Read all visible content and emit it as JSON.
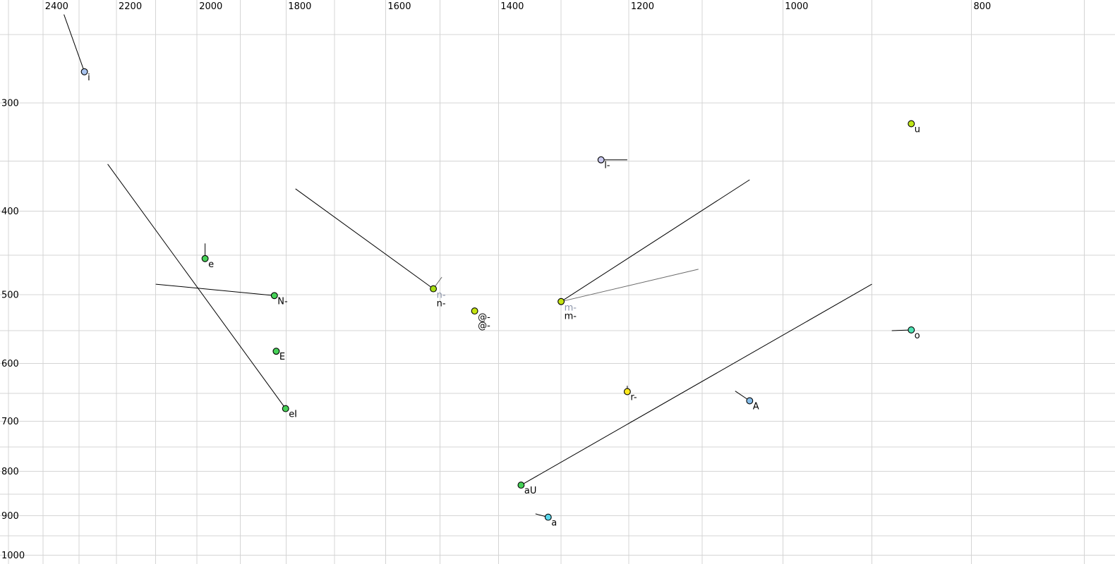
{
  "chart_data": {
    "type": "scatter",
    "title": "",
    "axes": {
      "x": {
        "scale": "log",
        "reversed": true,
        "min": 675,
        "max": 2525,
        "grid_from": 2500,
        "grid_to": 700,
        "grid_step": 100,
        "tick_labels": [
          2400,
          2200,
          2000,
          1800,
          1600,
          1400,
          1200,
          1000,
          800
        ],
        "label_side": "top"
      },
      "y": {
        "scale": "log",
        "min": 228,
        "max": 1024,
        "grid_from": 250,
        "grid_to": 1000,
        "grid_step": 50,
        "tick_labels": [
          300,
          400,
          500,
          600,
          700,
          800,
          900,
          1000
        ],
        "label_side": "left"
      }
    },
    "colors": {
      "background": "#ffffff",
      "grid": "#d4d4d4",
      "black_series": "#000000",
      "gray_series_label": "#8a93a8",
      "gray_series_line": "#6a6a6a"
    },
    "points": [
      {
        "label": "i",
        "f2": 2285,
        "f1": 276,
        "fill": "#a9c4ef",
        "labels": [
          {
            "text": "i",
            "color": "#000000"
          }
        ],
        "segments": [
          {
            "f2": 2341,
            "f1": 237,
            "color": "#000000"
          }
        ]
      },
      {
        "label": "e",
        "f2": 1981,
        "f1": 454,
        "fill": "#46d157",
        "labels": [
          {
            "text": "e",
            "color": "#000000"
          }
        ],
        "segments": [
          {
            "f2": 1981,
            "f1": 436,
            "color": "#000000"
          }
        ]
      },
      {
        "label": "N-",
        "f2": 1825,
        "f1": 501,
        "fill": "#46d157",
        "labels": [
          {
            "text": "N-",
            "color": "#000000"
          }
        ],
        "segments": [
          {
            "f2": 2100,
            "f1": 486,
            "color": "#000000"
          }
        ]
      },
      {
        "label": "E",
        "f2": 1821,
        "f1": 581,
        "fill": "#46d157",
        "labels": [
          {
            "text": "E",
            "color": "#000000"
          }
        ],
        "segments": []
      },
      {
        "label": "eI",
        "f2": 1801,
        "f1": 677,
        "fill": "#46d157",
        "labels": [
          {
            "text": "eI",
            "color": "#000000"
          }
        ],
        "segments": [
          {
            "f2": 2223,
            "f1": 353,
            "color": "#000000"
          }
        ]
      },
      {
        "label": "n-",
        "f2": 1512,
        "f1": 492,
        "fill": "#a5dd12",
        "labels": [
          {
            "text": "n-",
            "color": "#8a93a8"
          },
          {
            "text": "n-",
            "color": "#000000"
          }
        ],
        "segments": [
          {
            "f2": 1780,
            "f1": 377,
            "color": "#000000"
          },
          {
            "f2": 1497,
            "f1": 477,
            "color": "#6a6a6a"
          }
        ]
      },
      {
        "label": "@-",
        "f2": 1440,
        "f1": 522,
        "fill": "#c4e411",
        "labels": [
          {
            "text": "@-",
            "color": "#000000"
          },
          {
            "text": "@-",
            "color": "#000000"
          }
        ],
        "segments": []
      },
      {
        "label": "m-",
        "f2": 1300,
        "f1": 509,
        "fill": "#c4e411",
        "labels": [
          {
            "text": "m-",
            "color": "#8a93a8"
          },
          {
            "text": "m-",
            "color": "#000000"
          }
        ],
        "segments": [
          {
            "f2": 1040,
            "f1": 368,
            "color": "#000000"
          },
          {
            "f2": 1105,
            "f1": 467,
            "color": "#6a6a6a"
          }
        ]
      },
      {
        "label": "aU",
        "f2": 1363,
        "f1": 830,
        "fill": "#46d157",
        "labels": [
          {
            "text": "aU",
            "color": "#000000"
          }
        ],
        "segments": [
          {
            "f2": 900,
            "f1": 486,
            "color": "#000000"
          }
        ]
      },
      {
        "label": "a",
        "f2": 1320,
        "f1": 904,
        "fill": "#59d7ec",
        "labels": [
          {
            "text": "a",
            "color": "#000000"
          }
        ],
        "segments": [
          {
            "f2": 1340,
            "f1": 896,
            "color": "#000000"
          }
        ]
      },
      {
        "label": "r-",
        "f2": 1202,
        "f1": 647,
        "fill": "#ffe81c",
        "labels": [
          {
            "text": "r-",
            "color": "#000000"
          }
        ],
        "segments": [
          {
            "f2": 1202,
            "f1": 637,
            "color": "#000000"
          }
        ]
      },
      {
        "label": "l-",
        "f2": 1240,
        "f1": 349,
        "fill": "#c9c9ef",
        "labels": [
          {
            "text": "l-",
            "color": "#000000"
          }
        ],
        "segments": [
          {
            "f2": 1202,
            "f1": 349,
            "color": "#000000"
          }
        ]
      },
      {
        "label": "A",
        "f2": 1040,
        "f1": 663,
        "fill": "#85bce8",
        "labels": [
          {
            "text": "A",
            "color": "#000000"
          }
        ],
        "segments": [
          {
            "f2": 1058,
            "f1": 646,
            "color": "#000000"
          }
        ]
      },
      {
        "label": "o",
        "f2": 859,
        "f1": 549,
        "fill": "#4fe3b4",
        "labels": [
          {
            "text": "o",
            "color": "#000000"
          }
        ],
        "segments": [
          {
            "f2": 879,
            "f1": 550,
            "color": "#000000"
          }
        ]
      },
      {
        "label": "u",
        "f2": 859,
        "f1": 317,
        "fill": "#bfe617",
        "labels": [
          {
            "text": "u",
            "color": "#000000"
          }
        ],
        "segments": []
      }
    ]
  }
}
